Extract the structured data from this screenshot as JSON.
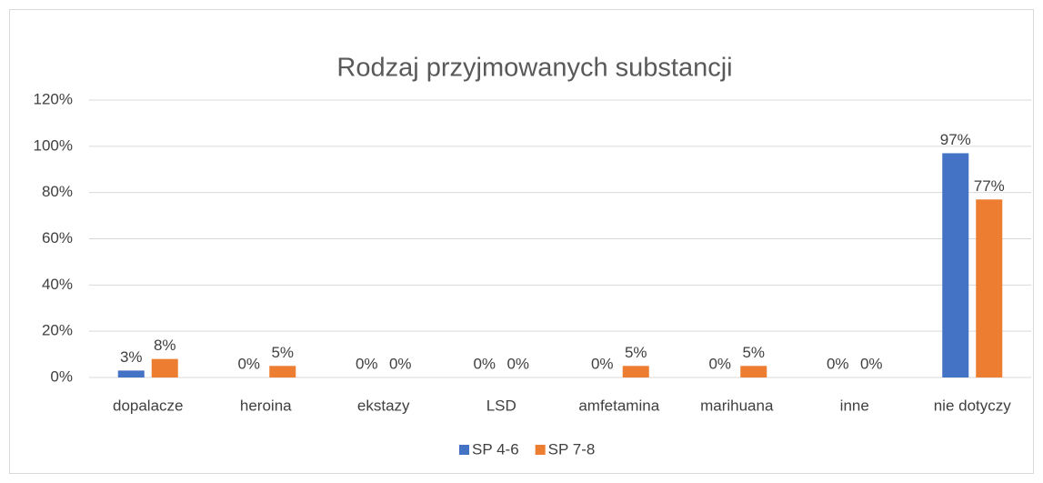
{
  "chart_data": {
    "type": "bar",
    "title": "Rodzaj przyjmowanych substancji",
    "categories": [
      "dopalacze",
      "heroina",
      "ekstazy",
      "LSD",
      "amfetamina",
      "marihuana",
      "inne",
      "nie dotyczy"
    ],
    "series": [
      {
        "name": "SP 4-6",
        "color": "#4472c4",
        "values": [
          3,
          0,
          0,
          0,
          0,
          0,
          0,
          97
        ],
        "value_labels": [
          "3%",
          "0%",
          "0%",
          "0%",
          "0%",
          "0%",
          "0%",
          "97%"
        ]
      },
      {
        "name": "SP 7-8",
        "color": "#ed7d31",
        "values": [
          8,
          5,
          0,
          0,
          5,
          5,
          0,
          77
        ],
        "value_labels": [
          "8%",
          "5%",
          "0%",
          "0%",
          "5%",
          "5%",
          "0%",
          "77%"
        ]
      }
    ],
    "ylim": [
      0,
      120
    ],
    "yticks": [
      {
        "value": 0,
        "label": "0%"
      },
      {
        "value": 20,
        "label": "20%"
      },
      {
        "value": 40,
        "label": "40%"
      },
      {
        "value": 60,
        "label": "60%"
      },
      {
        "value": 80,
        "label": "80%"
      },
      {
        "value": 100,
        "label": "100%"
      },
      {
        "value": 120,
        "label": "120%"
      }
    ],
    "grid": true,
    "legend": "bottom"
  }
}
